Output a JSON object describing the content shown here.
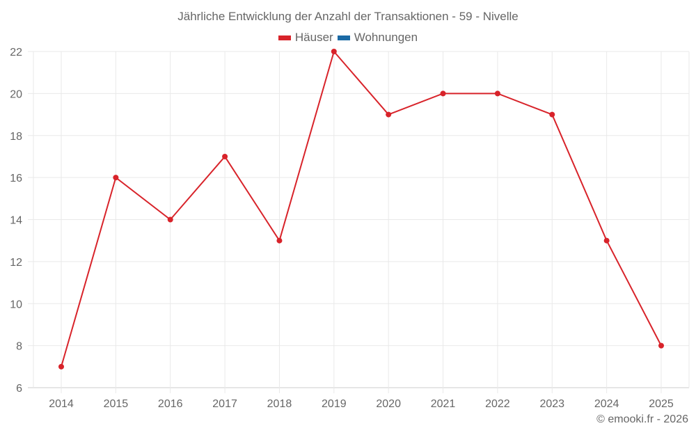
{
  "chart_data": {
    "type": "line",
    "title": "Jährliche Entwicklung der Anzahl der Transaktionen - 59 - Nivelle",
    "xlabel": "",
    "ylabel": "",
    "categories": [
      "2014",
      "2015",
      "2016",
      "2017",
      "2018",
      "2019",
      "2020",
      "2021",
      "2022",
      "2023",
      "2024",
      "2025"
    ],
    "series": [
      {
        "name": "Häuser",
        "color": "#d8232a",
        "values": [
          7,
          16,
          14,
          17,
          13,
          22,
          19,
          20,
          20,
          19,
          13,
          8
        ]
      },
      {
        "name": "Wohnungen",
        "color": "#1b6aa5",
        "values": []
      }
    ],
    "ylim": [
      6,
      22
    ],
    "yticks": [
      6,
      8,
      10,
      12,
      14,
      16,
      18,
      20,
      22
    ],
    "grid": true,
    "legend_position": "top"
  },
  "legend": {
    "items": [
      {
        "label": "Häuser",
        "color": "#d8232a"
      },
      {
        "label": "Wohnungen",
        "color": "#1b6aa5"
      }
    ]
  },
  "credit": "© emooki.fr - 2026"
}
